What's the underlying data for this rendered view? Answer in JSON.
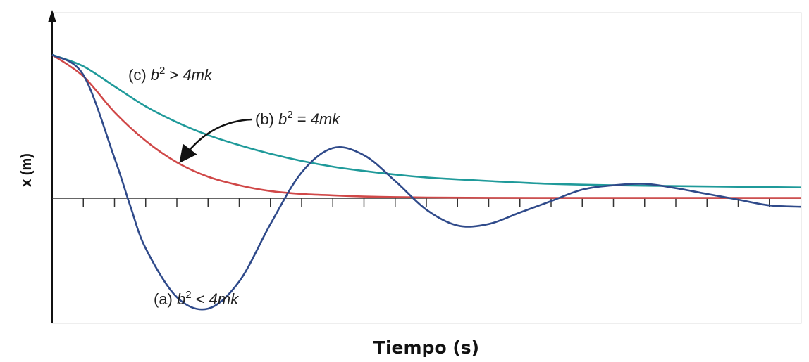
{
  "chart_data": {
    "type": "line",
    "title": "",
    "xlabel": "Tiempo (s)",
    "ylabel": "x (m)",
    "grid": false,
    "xlim": [
      0,
      24
    ],
    "ylim": [
      -1.0,
      1.15
    ],
    "tick_count": 24,
    "series": [
      {
        "name": "(a) b² < 4mk",
        "color": "#2f4a8a",
        "x": [
          0,
          1,
          2,
          2.5,
          3,
          4,
          5,
          6,
          7,
          8,
          9,
          10,
          11,
          12,
          13,
          14,
          15,
          16,
          17,
          18,
          19,
          20,
          21,
          22,
          23,
          24
        ],
        "y": [
          1.0,
          0.86,
          0.28,
          -0.05,
          -0.35,
          -0.69,
          -0.77,
          -0.58,
          -0.18,
          0.18,
          0.35,
          0.3,
          0.12,
          -0.08,
          -0.19,
          -0.18,
          -0.1,
          -0.02,
          0.06,
          0.09,
          0.1,
          0.07,
          0.03,
          -0.01,
          -0.05,
          -0.06
        ]
      },
      {
        "name": "(b) b² = 4mk",
        "color": "#d04848",
        "x": [
          0,
          1,
          2,
          3,
          4,
          5,
          6,
          7,
          8,
          9,
          10,
          11,
          12,
          14,
          16,
          18,
          20,
          22,
          24
        ],
        "y": [
          1.0,
          0.85,
          0.6,
          0.4,
          0.25,
          0.15,
          0.09,
          0.05,
          0.03,
          0.02,
          0.012,
          0.008,
          0.005,
          0.003,
          0.002,
          0.002,
          0.002,
          0.002,
          0.002
        ]
      },
      {
        "name": "(c) b² > 4mk",
        "color": "#1f9a9a",
        "x": [
          0,
          1,
          2,
          3,
          4,
          5,
          6,
          7,
          8,
          9,
          10,
          11,
          12,
          14,
          16,
          18,
          20,
          22,
          24
        ],
        "y": [
          1.0,
          0.92,
          0.78,
          0.64,
          0.53,
          0.44,
          0.37,
          0.31,
          0.26,
          0.22,
          0.19,
          0.165,
          0.145,
          0.12,
          0.1,
          0.09,
          0.085,
          0.08,
          0.075
        ]
      }
    ],
    "annotations": [
      {
        "series": "(c) b² > 4mk",
        "prefix": "(c) ",
        "base": "b",
        "exp": "2",
        "rel": " > ",
        "rhs": "4mk"
      },
      {
        "series": "(b) b² = 4mk",
        "prefix": "(b) ",
        "base": "b",
        "exp": "2",
        "rel": " = ",
        "rhs": "4mk",
        "arrow": true
      },
      {
        "series": "(a) b² < 4mk",
        "prefix": "(a) ",
        "base": "b",
        "exp": "2",
        "rel": " < ",
        "rhs": "4mk"
      }
    ]
  }
}
